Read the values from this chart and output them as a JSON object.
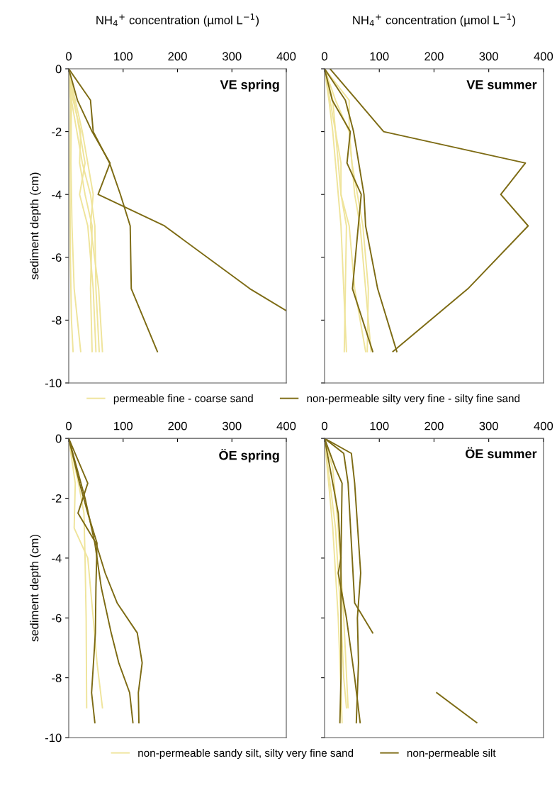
{
  "chart_data": [
    {
      "type": "line",
      "title": "VE spring",
      "xlabel": "NH$_{4}$$^{+}$ concentration (µmol L$^{−1}$)",
      "ylabel": "sediment depth (cm)",
      "xlim": [
        0,
        400
      ],
      "xticks": [
        0,
        100,
        200,
        300,
        400
      ],
      "ylim": [
        -10,
        0
      ],
      "yticks": [
        0,
        -2,
        -4,
        -6,
        -8,
        -10
      ],
      "legend": "bottom",
      "grid": false,
      "series": [
        {
          "name": "permeable fine - coarse sand",
          "color": "#efe49b",
          "x": [
            0,
            5,
            4,
            6,
            10,
            22
          ],
          "values": [
            0,
            -1,
            -3,
            -5,
            -7,
            -9
          ]
        },
        {
          "color": "#efe49b",
          "x": [
            0,
            10,
            20,
            30,
            20,
            35,
            45,
            50
          ],
          "values": [
            0,
            -1,
            -2,
            -3,
            -4,
            -5,
            -7,
            -9
          ]
        },
        {
          "color": "#efe49b",
          "x": [
            0,
            8,
            22,
            20,
            30,
            43,
            40,
            43
          ],
          "values": [
            0,
            -1,
            -2,
            -3,
            -4,
            -5,
            -7,
            -9
          ]
        },
        {
          "color": "#efe49b",
          "x": [
            0,
            5,
            15,
            25,
            40,
            48,
            50,
            56
          ],
          "values": [
            0,
            -1,
            -2,
            -3,
            -4,
            -5,
            -7,
            -9
          ]
        },
        {
          "color": "#efe49b",
          "x": [
            0,
            3,
            2,
            3,
            5,
            8
          ],
          "values": [
            0,
            -1,
            -3,
            -6,
            -8,
            -9
          ]
        },
        {
          "color": "#efe49b",
          "x": [
            0,
            12,
            25,
            35,
            45,
            40,
            55,
            62
          ],
          "values": [
            0,
            -1,
            -2,
            -3,
            -4,
            -5,
            -7,
            -9
          ]
        },
        {
          "name": "non-permeable silty very fine - silty fine sand",
          "color": "#7d6b14",
          "x": [
            0,
            16,
            43,
            76,
            54,
            176,
            333,
            400
          ],
          "values": [
            0,
            -1,
            -2,
            -3,
            -4,
            -5,
            -7,
            -7.7
          ]
        },
        {
          "color": "#7d6b14",
          "x": [
            0,
            40,
            45,
            75,
            95,
            113,
            115,
            163
          ],
          "values": [
            0,
            -1,
            -2,
            -3,
            -4,
            -5,
            -7,
            -9
          ]
        }
      ]
    },
    {
      "type": "line",
      "title": "VE summer",
      "xlabel": "NH$_{4}$$^{+}$ concentration (µmol L$^{−1}$)",
      "xlim": [
        0,
        400
      ],
      "xticks": [
        0,
        100,
        200,
        300,
        400
      ],
      "ylim": [
        -10,
        0
      ],
      "yticks": [
        0,
        -2,
        -4,
        -6,
        -8,
        -10
      ],
      "tick_labels": "x",
      "grid": false,
      "series": [
        {
          "color": "#efe49b",
          "x": [
            0,
            15,
            20,
            30,
            30,
            40,
            38,
            36
          ],
          "values": [
            0,
            -1,
            -2,
            -3,
            -4,
            -5,
            -7,
            -9
          ]
        },
        {
          "color": "#efe49b",
          "x": [
            0,
            20,
            45,
            50,
            55,
            65,
            75,
            85
          ],
          "values": [
            0,
            -1,
            -2,
            -3,
            -4,
            -5,
            -7,
            -9
          ]
        },
        {
          "color": "#efe49b",
          "x": [
            0,
            45,
            45,
            50,
            60,
            70,
            80,
            78
          ],
          "values": [
            0,
            -1,
            -2,
            -3,
            -4,
            -5,
            -7,
            -9
          ]
        },
        {
          "color": "#efe49b",
          "x": [
            0,
            10,
            20,
            25,
            30,
            45,
            55,
            75
          ],
          "values": [
            0,
            -1,
            -2,
            -3,
            -4,
            -5,
            -7,
            -9
          ]
        },
        {
          "color": "#efe49b",
          "x": [
            0,
            8,
            15,
            20,
            25,
            30,
            35,
            40
          ],
          "values": [
            0,
            -1,
            -2,
            -3,
            -4,
            -5,
            -7,
            -9
          ]
        },
        {
          "color": "#7d6b14",
          "x": [
            0,
            38,
            53,
            72,
            75,
            97,
            132
          ],
          "values": [
            0,
            -1,
            -2,
            -4,
            -5,
            -7,
            -9
          ]
        },
        {
          "color": "#7d6b14",
          "x": [
            0,
            14,
            47,
            41,
            67,
            51,
            88
          ],
          "values": [
            0,
            -1,
            -2,
            -3,
            -4,
            -7,
            -9
          ]
        },
        {
          "color": "#7d6b14",
          "x": [
            10,
            108,
            367,
            322,
            372,
            262,
            125
          ],
          "values": [
            0,
            -2,
            -3,
            -4,
            -5,
            -7,
            -9
          ]
        }
      ]
    },
    {
      "type": "line",
      "title": "ÖE spring",
      "ylabel": "sediment depth (cm)",
      "xlim": [
        0,
        400
      ],
      "xticks": [
        0,
        100,
        200,
        300,
        400
      ],
      "ylim": [
        -10,
        0
      ],
      "yticks": [
        0,
        -2,
        -4,
        -6,
        -8,
        -10
      ],
      "legend": "bottom",
      "grid": false,
      "series": [
        {
          "name": "non-permeable sandy silt, silty very fine sand",
          "color": "#efe49b",
          "x": [
            0,
            12,
            10,
            35,
            45,
            52,
            62
          ],
          "values": [
            0,
            -1.5,
            -3,
            -4,
            -6,
            -7.5,
            -9
          ]
        },
        {
          "color": "#efe49b",
          "x": [
            0,
            18,
            28,
            30,
            32,
            33
          ],
          "values": [
            0,
            -1.5,
            -2.5,
            -4,
            -6,
            -9
          ]
        },
        {
          "name": "non-permeable silt",
          "color": "#7d6b14",
          "x": [
            0,
            35,
            17,
            50,
            67,
            89,
            126,
            135,
            128,
            129
          ],
          "values": [
            0,
            -1.5,
            -2.5,
            -3.5,
            -4.5,
            -5.5,
            -6.5,
            -7.5,
            -8.5,
            -9.5
          ]
        },
        {
          "color": "#7d6b14",
          "x": [
            0,
            15,
            30,
            48,
            60,
            78,
            92,
            112,
            118
          ],
          "values": [
            0,
            -1,
            -2,
            -3.5,
            -5,
            -6.5,
            -7.5,
            -8.5,
            -9.5
          ]
        },
        {
          "color": "#7d6b14",
          "x": [
            0,
            20,
            35,
            52,
            50,
            49,
            42,
            48
          ],
          "values": [
            0,
            -1.5,
            -2.5,
            -3.5,
            -5,
            -6.5,
            -8.5,
            -9.5
          ]
        }
      ]
    },
    {
      "type": "line",
      "title": "ÖE summer",
      "xlim": [
        0,
        400
      ],
      "xticks": [
        0,
        100,
        200,
        300,
        400
      ],
      "ylim": [
        -10,
        0
      ],
      "yticks": [
        0,
        -2,
        -4,
        -6,
        -8,
        -10
      ],
      "tick_labels": "x",
      "grid": false,
      "series": [
        {
          "color": "#efe49b",
          "x": [
            0,
            10,
            20,
            30,
            35,
            40
          ],
          "values": [
            0,
            -1.5,
            -3,
            -6,
            -8,
            -9
          ]
        },
        {
          "color": "#efe49b",
          "x": [
            0,
            15,
            25,
            35,
            43
          ],
          "values": [
            0,
            -1,
            -3,
            -6,
            -9
          ]
        },
        {
          "color": "#efe49b",
          "x": [
            0,
            5,
            15,
            25,
            32
          ],
          "values": [
            0,
            -1,
            -3,
            -6,
            -9.5
          ]
        },
        {
          "color": "#7d6b14",
          "x": [
            0,
            49,
            55,
            66,
            60,
            62,
            58
          ],
          "values": [
            0,
            -0.5,
            -1.5,
            -4.5,
            -6,
            -7.5,
            -9.5
          ]
        },
        {
          "color": "#7d6b14",
          "x": [
            0,
            35,
            43,
            55,
            88
          ],
          "values": [
            0,
            -0.5,
            -1.5,
            -5.5,
            -6.5
          ]
        },
        {
          "color": "#7d6b14",
          "x": [
            0,
            20,
            32,
            30,
            25,
            40,
            55,
            65
          ],
          "values": [
            0,
            -1,
            -1.5,
            -4,
            -4.5,
            -6,
            -8,
            -9.5
          ]
        },
        {
          "color": "#7d6b14",
          "x": [
            0,
            10,
            25,
            30,
            30,
            28
          ],
          "values": [
            0,
            -1,
            -2.5,
            -4,
            -8,
            -9.5
          ]
        },
        {
          "color": "#7d6b14",
          "x": [
            205,
            278
          ],
          "values": [
            -8.5,
            -9.5
          ]
        }
      ]
    }
  ]
}
